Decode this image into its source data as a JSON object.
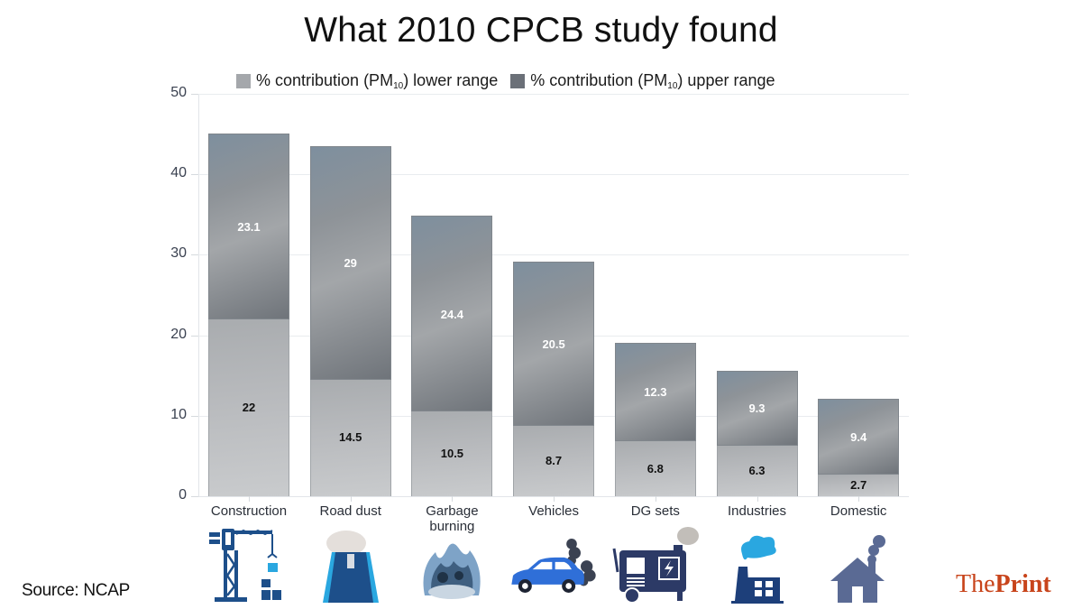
{
  "title": "What 2010 CPCB study found",
  "legend": {
    "lower": {
      "prefix": "% contribution (PM",
      "sub": "10",
      "suffix": ") lower range",
      "color": "#a4a7ab"
    },
    "upper": {
      "prefix": "% contribution (PM",
      "sub": "10",
      "suffix": ") upper range",
      "color": "#6b7078"
    }
  },
  "y_ticks": [
    "0",
    "10",
    "20",
    "30",
    "40",
    "50"
  ],
  "categories": [
    {
      "label": "Construction",
      "lower": "22",
      "upper": "23.1",
      "icon": "construction-crane-icon"
    },
    {
      "label": "Road dust",
      "lower": "14.5",
      "upper": "29",
      "icon": "road-icon"
    },
    {
      "label": "Garbage burning",
      "lower": "10.5",
      "upper": "24.4",
      "icon": "garbage-fire-icon"
    },
    {
      "label": "Vehicles",
      "lower": "8.7",
      "upper": "20.5",
      "icon": "car-exhaust-icon"
    },
    {
      "label": "DG sets",
      "lower": "6.8",
      "upper": "12.3",
      "icon": "diesel-generator-icon"
    },
    {
      "label": "Industries",
      "lower": "6.3",
      "upper": "9.3",
      "icon": "factory-icon"
    },
    {
      "label": "Domestic",
      "lower": "2.7",
      "upper": "9.4",
      "icon": "house-chimney-icon"
    }
  ],
  "source": "Source: NCAP",
  "brand": {
    "the": "The",
    "print": "Print",
    "color": "#c8441b"
  },
  "chart_data": {
    "type": "bar",
    "stacked": true,
    "title": "What 2010 CPCB study found",
    "categories": [
      "Construction",
      "Road dust",
      "Garbage burning",
      "Vehicles",
      "DG sets",
      "Industries",
      "Domestic"
    ],
    "series": [
      {
        "name": "% contribution (PM10) lower range",
        "values": [
          22,
          14.5,
          10.5,
          8.7,
          6.8,
          6.3,
          2.7
        ]
      },
      {
        "name": "% contribution (PM10) upper range",
        "values": [
          23.1,
          29,
          24.4,
          20.5,
          12.3,
          9.3,
          9.4
        ]
      }
    ],
    "xlabel": "",
    "ylabel": "",
    "ylim": [
      0,
      50
    ],
    "yticks": [
      0,
      10,
      20,
      30,
      40,
      50
    ],
    "grid": true,
    "legend_position": "top",
    "source": "Source: NCAP"
  }
}
